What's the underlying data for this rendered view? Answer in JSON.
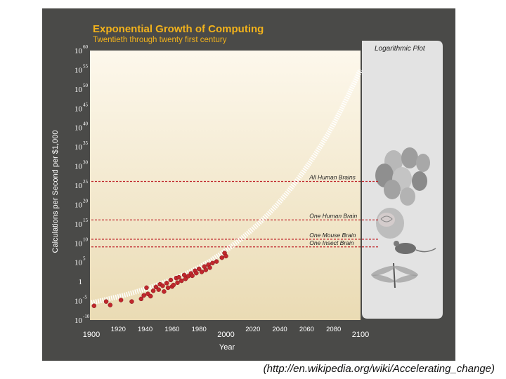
{
  "colors": {
    "panel": "#4a4a48",
    "title": "#f2b21b",
    "plot_top": "#fdf8ec",
    "plot_bottom": "#eadbb4",
    "threshold_line": "#c0262c",
    "data_point": "#c1272d",
    "side_panel": "#e3e3e3",
    "axis_text": "#ffffff"
  },
  "caption": "(http://en.wikipedia.org/wiki/Accelerating_change)",
  "chart_data": {
    "type": "scatter",
    "title": "Exponential Growth of Computing",
    "subtitle": "Twentieth through twenty first century",
    "xlabel": "Year",
    "ylabel": "Calculations per Second per $1,000",
    "xlim": [
      1900,
      2100
    ],
    "ylim": [
      -10,
      60
    ],
    "yscale": "log10",
    "x_ticks": [
      1900,
      1920,
      1940,
      1960,
      1980,
      2000,
      2020,
      2040,
      2060,
      2080,
      2100
    ],
    "y_ticks": [
      {
        "base": "10",
        "exp": "60",
        "value": 60
      },
      {
        "base": "10",
        "exp": "55",
        "value": 55
      },
      {
        "base": "10",
        "exp": "50",
        "value": 50
      },
      {
        "base": "10",
        "exp": "45",
        "value": 45
      },
      {
        "base": "10",
        "exp": "40",
        "value": 40
      },
      {
        "base": "10",
        "exp": "35",
        "value": 35
      },
      {
        "base": "10",
        "exp": "30",
        "value": 30
      },
      {
        "base": "10",
        "exp": "25",
        "value": 25
      },
      {
        "base": "10",
        "exp": "20",
        "value": 20
      },
      {
        "base": "10",
        "exp": "15",
        "value": 15
      },
      {
        "base": "10",
        "exp": "10",
        "value": 10
      },
      {
        "base": "10",
        "exp": "5",
        "value": 5
      },
      {
        "base": "1",
        "exp": "",
        "value": 0
      },
      {
        "base": "10",
        "exp": "-5",
        "value": -5
      },
      {
        "base": "10",
        "exp": "-10",
        "value": -10
      }
    ],
    "side_panel_label": "Logarithmic Plot",
    "thresholds": [
      {
        "label": "All Human Brains",
        "value": 26,
        "label_year": 2062
      },
      {
        "label": "One Human Brain",
        "value": 16,
        "label_year": 2062
      },
      {
        "label": "One Mouse Brain",
        "value": 11,
        "label_year": 2062
      },
      {
        "label": "One Insect Brain",
        "value": 9,
        "label_year": 2062
      }
    ],
    "trend_curve": [
      {
        "x": 1900,
        "y": -5.5
      },
      {
        "x": 1920,
        "y": -4
      },
      {
        "x": 1940,
        "y": -2
      },
      {
        "x": 1960,
        "y": 0.5
      },
      {
        "x": 1980,
        "y": 3.5
      },
      {
        "x": 2000,
        "y": 8
      },
      {
        "x": 2020,
        "y": 13.5
      },
      {
        "x": 2040,
        "y": 20.5
      },
      {
        "x": 2060,
        "y": 29.5
      },
      {
        "x": 2080,
        "y": 40.5
      },
      {
        "x": 2100,
        "y": 55
      }
    ],
    "series": [
      {
        "name": "Computing devices",
        "points": [
          {
            "x": 1902,
            "y": -6.3
          },
          {
            "x": 1911,
            "y": -5.2
          },
          {
            "x": 1914,
            "y": -6.1
          },
          {
            "x": 1922,
            "y": -4.8
          },
          {
            "x": 1930,
            "y": -5.2
          },
          {
            "x": 1937,
            "y": -4.5
          },
          {
            "x": 1939,
            "y": -3.6
          },
          {
            "x": 1941,
            "y": -1.6
          },
          {
            "x": 1942,
            "y": -3.2
          },
          {
            "x": 1944,
            "y": -3.8
          },
          {
            "x": 1946,
            "y": -2.4
          },
          {
            "x": 1948,
            "y": -1.4
          },
          {
            "x": 1950,
            "y": -2.1
          },
          {
            "x": 1951,
            "y": -0.7
          },
          {
            "x": 1953,
            "y": -1.1
          },
          {
            "x": 1954,
            "y": -2.6
          },
          {
            "x": 1956,
            "y": -0.4
          },
          {
            "x": 1957,
            "y": -1.6
          },
          {
            "x": 1959,
            "y": 0.4
          },
          {
            "x": 1960,
            "y": -1.3
          },
          {
            "x": 1961,
            "y": -0.9
          },
          {
            "x": 1963,
            "y": 0.9
          },
          {
            "x": 1964,
            "y": -0.3
          },
          {
            "x": 1965,
            "y": 1.1
          },
          {
            "x": 1967,
            "y": 0.2
          },
          {
            "x": 1969,
            "y": 1.7
          },
          {
            "x": 1970,
            "y": 0.7
          },
          {
            "x": 1972,
            "y": 1.4
          },
          {
            "x": 1974,
            "y": 2.1
          },
          {
            "x": 1975,
            "y": 1.5
          },
          {
            "x": 1977,
            "y": 2.8
          },
          {
            "x": 1978,
            "y": 2.2
          },
          {
            "x": 1980,
            "y": 3.3
          },
          {
            "x": 1982,
            "y": 2.5
          },
          {
            "x": 1984,
            "y": 3.9
          },
          {
            "x": 1985,
            "y": 3.0
          },
          {
            "x": 1987,
            "y": 4.4
          },
          {
            "x": 1988,
            "y": 3.6
          },
          {
            "x": 1990,
            "y": 4.8
          },
          {
            "x": 1993,
            "y": 5.2
          },
          {
            "x": 1997,
            "y": 6.2
          },
          {
            "x": 1999,
            "y": 7.4
          },
          {
            "x": 2000,
            "y": 6.6
          }
        ]
      }
    ]
  }
}
